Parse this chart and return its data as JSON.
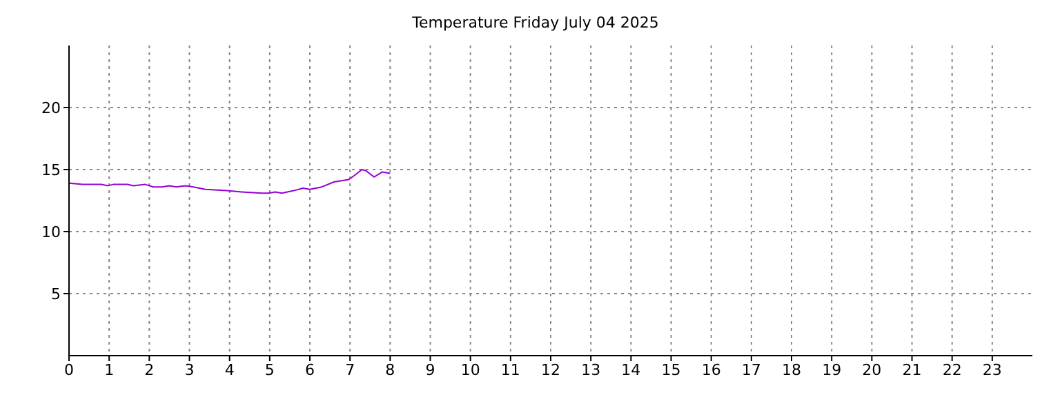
{
  "chart_data": {
    "type": "line",
    "title": "Temperature Friday July 04 2025",
    "x": [
      0,
      0.34,
      0.8,
      0.97,
      1.1,
      1.46,
      1.6,
      1.9,
      2.1,
      2.32,
      2.5,
      2.67,
      2.9,
      3.1,
      3.4,
      3.93,
      4.3,
      4.8,
      4.97,
      5.14,
      5.3,
      5.6,
      5.83,
      6.0,
      6.3,
      6.6,
      6.97,
      7.1,
      7.3,
      7.4,
      7.6,
      7.8,
      8.0
    ],
    "series": [
      {
        "color": "#9400d3",
        "values": [
          13.9,
          13.8,
          13.8,
          13.7,
          13.8,
          13.8,
          13.7,
          13.8,
          13.6,
          13.6,
          13.7,
          13.6,
          13.7,
          13.6,
          13.4,
          13.3,
          13.2,
          13.1,
          13.1,
          13.2,
          13.1,
          13.3,
          13.5,
          13.4,
          13.6,
          14.0,
          14.2,
          14.5,
          15.0,
          14.9,
          14.4,
          14.8,
          14.7
        ]
      }
    ],
    "xlim": [
      0,
      24
    ],
    "xticks": [
      0,
      1,
      2,
      3,
      4,
      5,
      6,
      7,
      8,
      9,
      10,
      11,
      12,
      13,
      14,
      15,
      16,
      17,
      18,
      19,
      20,
      21,
      22,
      23
    ],
    "ylim": [
      0,
      25
    ],
    "yticks": [
      5,
      10,
      15,
      20
    ],
    "grid": true,
    "line_style": "solid",
    "marker": "none"
  }
}
